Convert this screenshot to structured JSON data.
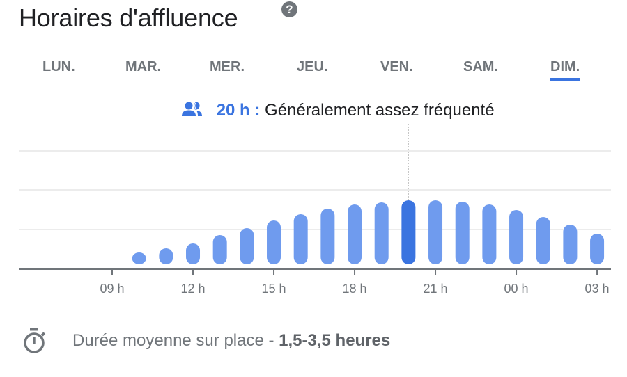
{
  "header": {
    "title": "Horaires d'affluence",
    "help_icon": "help-circle-icon",
    "help_glyph": "?"
  },
  "tabs": [
    {
      "label": "LUN.",
      "active": false
    },
    {
      "label": "MAR.",
      "active": false
    },
    {
      "label": "MER.",
      "active": false
    },
    {
      "label": "JEU.",
      "active": false
    },
    {
      "label": "VEN.",
      "active": false
    },
    {
      "label": "SAM.",
      "active": false
    },
    {
      "label": "DIM.",
      "active": true
    }
  ],
  "status": {
    "icon": "people-icon",
    "hour": "20 h :",
    "text": "Généralement assez fréquenté"
  },
  "footer": {
    "icon": "timer-icon",
    "label": "Durée moyenne sur place - ",
    "value": "1,5-3,5 heures"
  },
  "colors": {
    "accent": "#3a74e0",
    "bar": "#6f9bee",
    "bar_selected": "#3a74e0",
    "axis": "#70757a",
    "grid": "#ececec",
    "text": "#202124",
    "muted": "#70757a"
  },
  "chart_data": {
    "type": "bar",
    "title": "Horaires d'affluence",
    "subtitle": "DIM.",
    "xlabel": "",
    "ylabel": "",
    "categories": [
      "10 h",
      "11 h",
      "12 h",
      "13 h",
      "14 h",
      "15 h",
      "16 h",
      "17 h",
      "18 h",
      "19 h",
      "20 h",
      "21 h",
      "22 h",
      "23 h",
      "00 h",
      "01 h",
      "02 h",
      "03 h"
    ],
    "values": [
      17,
      23,
      30,
      42,
      52,
      63,
      72,
      80,
      86,
      89,
      92,
      92,
      90,
      86,
      78,
      68,
      57,
      44
    ],
    "selected": "20 h",
    "x_ticks": [
      "09 h",
      "12 h",
      "15 h",
      "18 h",
      "21 h",
      "00 h",
      "03 h"
    ],
    "ylim": [
      0,
      165
    ],
    "grid": true,
    "legend": "none"
  }
}
